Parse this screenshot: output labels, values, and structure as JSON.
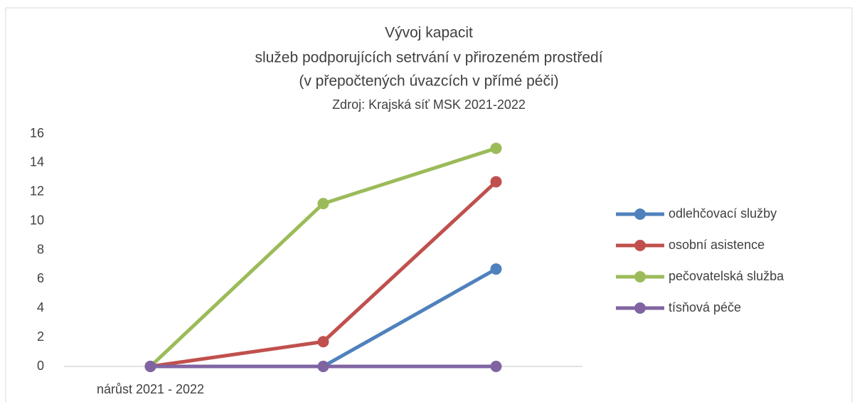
{
  "chart_data": {
    "type": "line",
    "title": "Vývoj kapacit",
    "subtitle": [
      "služeb podporujících setrvání v přirozeném prostředí",
      "(v přepočtených úvazcích v přímé péči)",
      "Zdroj: Krajská síť MSK 2021-2022"
    ],
    "categories": [
      "nárůst 2021 - 2022",
      null,
      null
    ],
    "series": [
      {
        "name": "odlehčovací služby",
        "color": "#4f81bd",
        "values": [
          0,
          0,
          6.7
        ]
      },
      {
        "name": "osobní asistence",
        "color": "#c0504d",
        "values": [
          0,
          1.7,
          12.7
        ]
      },
      {
        "name": "pečovatelská služba",
        "color": "#9bbb59",
        "values": [
          0,
          11.2,
          15
        ]
      },
      {
        "name": "tísňová péče",
        "color": "#8064a2",
        "values": [
          0,
          0,
          0
        ]
      }
    ],
    "ylim": [
      0,
      16
    ],
    "yticks": [
      0,
      2,
      4,
      6,
      8,
      10,
      12,
      14,
      16
    ],
    "grid": false,
    "legend": "right"
  }
}
